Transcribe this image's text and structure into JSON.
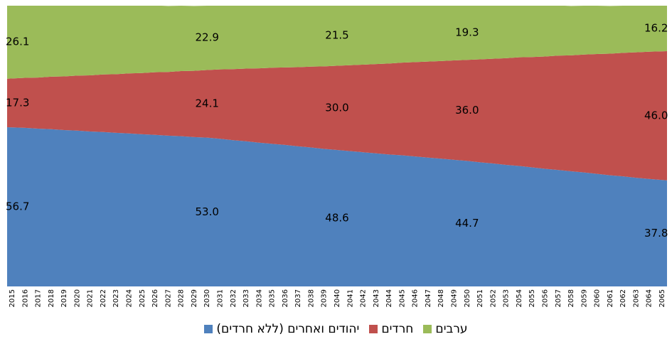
{
  "chart_data": {
    "type": "stacked_area",
    "categories": [
      "2015",
      "2016",
      "2017",
      "2018",
      "2019",
      "2020",
      "2021",
      "2022",
      "2023",
      "2024",
      "2025",
      "2026",
      "2027",
      "2028",
      "2029",
      "2030",
      "2031",
      "2032",
      "2033",
      "2034",
      "2035",
      "2036",
      "2037",
      "2038",
      "2039",
      "2040",
      "2041",
      "2042",
      "2043",
      "2044",
      "2045",
      "2046",
      "2047",
      "2048",
      "2049",
      "2050",
      "2051",
      "2052",
      "2053",
      "2054",
      "2055",
      "2056",
      "2057",
      "2058",
      "2059",
      "2060",
      "2061",
      "2062",
      "2063",
      "2064",
      "2065"
    ],
    "ylim": [
      0,
      100
    ],
    "series": [
      {
        "name": "יהודים ואחרים (ללא חרדים)",
        "color": "#4f81bd",
        "values": [
          56.7,
          56.5,
          56.2,
          56.0,
          55.7,
          55.5,
          55.2,
          55.0,
          54.7,
          54.5,
          54.2,
          54.0,
          53.7,
          53.5,
          53.2,
          53.0,
          52.6,
          52.1,
          51.7,
          51.2,
          50.8,
          50.4,
          49.9,
          49.5,
          49.0,
          48.6,
          48.2,
          47.8,
          47.4,
          47.0,
          46.7,
          46.3,
          45.9,
          45.5,
          45.1,
          44.7,
          44.2,
          43.8,
          43.3,
          42.9,
          42.4,
          41.9,
          41.5,
          41.0,
          40.6,
          40.1,
          39.6,
          39.2,
          38.7,
          38.3,
          37.8
        ],
        "value_labels": [
          "56.7",
          null,
          null,
          null,
          null,
          null,
          null,
          null,
          null,
          null,
          null,
          null,
          null,
          null,
          null,
          "53.0",
          null,
          null,
          null,
          null,
          null,
          null,
          null,
          null,
          null,
          "48.6",
          null,
          null,
          null,
          null,
          null,
          null,
          null,
          null,
          null,
          "44.7",
          null,
          null,
          null,
          null,
          null,
          null,
          null,
          null,
          null,
          null,
          null,
          null,
          null,
          null,
          "37.8"
        ]
      },
      {
        "name": "חרדים",
        "color": "#c0504d",
        "values": [
          17.3,
          17.8,
          18.2,
          18.7,
          19.1,
          19.6,
          20.0,
          20.5,
          20.9,
          21.4,
          21.8,
          22.3,
          22.7,
          23.2,
          23.6,
          24.1,
          24.7,
          25.3,
          25.9,
          26.5,
          27.1,
          27.6,
          28.2,
          28.8,
          29.4,
          30.0,
          30.6,
          31.2,
          31.8,
          32.4,
          33.0,
          33.6,
          34.2,
          34.8,
          35.4,
          36.0,
          36.7,
          37.3,
          38.0,
          38.7,
          39.3,
          40.0,
          40.7,
          41.3,
          42.0,
          42.7,
          43.3,
          44.0,
          44.7,
          45.3,
          46.0
        ],
        "value_labels": [
          "17.3",
          null,
          null,
          null,
          null,
          null,
          null,
          null,
          null,
          null,
          null,
          null,
          null,
          null,
          null,
          "24.1",
          null,
          null,
          null,
          null,
          null,
          null,
          null,
          null,
          null,
          "30.0",
          null,
          null,
          null,
          null,
          null,
          null,
          null,
          null,
          null,
          "36.0",
          null,
          null,
          null,
          null,
          null,
          null,
          null,
          null,
          null,
          null,
          null,
          null,
          null,
          null,
          "46.0"
        ]
      },
      {
        "name": "ערבים",
        "color": "#9bbb59",
        "values": [
          26.1,
          25.9,
          25.7,
          25.5,
          25.2,
          25.0,
          24.8,
          24.6,
          24.4,
          24.2,
          24.0,
          23.8,
          23.5,
          23.3,
          23.1,
          22.9,
          22.8,
          22.6,
          22.5,
          22.3,
          22.2,
          22.1,
          21.9,
          21.8,
          21.6,
          21.5,
          21.3,
          21.1,
          20.8,
          20.6,
          20.4,
          20.2,
          20.0,
          19.7,
          19.5,
          19.3,
          19.1,
          18.9,
          18.7,
          18.5,
          18.3,
          18.1,
          17.9,
          17.6,
          17.4,
          17.2,
          17.0,
          16.8,
          16.6,
          16.4,
          16.2
        ],
        "value_labels": [
          "26.1",
          null,
          null,
          null,
          null,
          null,
          null,
          null,
          null,
          null,
          null,
          null,
          null,
          null,
          null,
          "22.9",
          null,
          null,
          null,
          null,
          null,
          null,
          null,
          null,
          null,
          "21.5",
          null,
          null,
          null,
          null,
          null,
          null,
          null,
          null,
          null,
          "19.3",
          null,
          null,
          null,
          null,
          null,
          null,
          null,
          null,
          null,
          null,
          null,
          null,
          null,
          null,
          "16.2"
        ]
      }
    ]
  }
}
